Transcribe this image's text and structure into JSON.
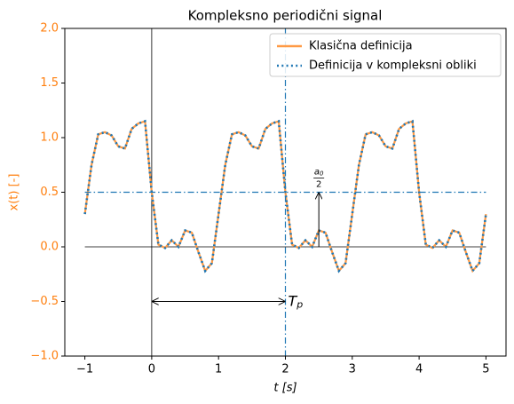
{
  "chart_data": {
    "type": "line",
    "title": "Kompleksno periodični signal",
    "x_label": "t [s]",
    "y_label": "x(t) [-]",
    "y_label_color": "#ff7f0e",
    "x": [
      -1.0,
      -0.9,
      -0.8,
      -0.7,
      -0.6,
      -0.5,
      -0.4,
      -0.3,
      -0.2,
      -0.1,
      0.0,
      0.1,
      0.2,
      0.3,
      0.4,
      0.5,
      0.6,
      0.7,
      0.8,
      0.9,
      1.0,
      1.1,
      1.2,
      1.3,
      1.4,
      1.5,
      1.6,
      1.7,
      1.8,
      1.9,
      2.0,
      2.1,
      2.2,
      2.3,
      2.4,
      2.5,
      2.6,
      2.7,
      2.8,
      2.9,
      3.0,
      3.1,
      3.2,
      3.3,
      3.4,
      3.5,
      3.6,
      3.7,
      3.8,
      3.9,
      4.0,
      4.1,
      4.2,
      4.3,
      4.4,
      4.5,
      4.6,
      4.7,
      4.8,
      4.9,
      5.0
    ],
    "series": [
      {
        "name": "Klasična definicija",
        "color": "#ff9a45",
        "style": "solid",
        "values": [
          0.3,
          0.75,
          1.03,
          1.05,
          1.02,
          0.92,
          0.9,
          1.08,
          1.13,
          1.15,
          0.5,
          0.02,
          -0.01,
          0.06,
          0.0,
          0.15,
          0.13,
          -0.05,
          -0.22,
          -0.15,
          0.3,
          0.75,
          1.03,
          1.05,
          1.02,
          0.92,
          0.9,
          1.08,
          1.13,
          1.15,
          0.5,
          0.02,
          -0.01,
          0.06,
          0.0,
          0.15,
          0.13,
          -0.05,
          -0.22,
          -0.15,
          0.3,
          0.75,
          1.03,
          1.05,
          1.02,
          0.92,
          0.9,
          1.08,
          1.13,
          1.15,
          0.5,
          0.02,
          -0.01,
          0.06,
          0.0,
          0.15,
          0.13,
          -0.05,
          -0.22,
          -0.15,
          0.3
        ]
      },
      {
        "name": "Definicija v kompleksni obliki",
        "color": "#1f77b4",
        "style": "dotted",
        "values": [
          0.3,
          0.75,
          1.03,
          1.05,
          1.02,
          0.92,
          0.9,
          1.08,
          1.13,
          1.15,
          0.5,
          0.02,
          -0.01,
          0.06,
          0.0,
          0.15,
          0.13,
          -0.05,
          -0.22,
          -0.15,
          0.3,
          0.75,
          1.03,
          1.05,
          1.02,
          0.92,
          0.9,
          1.08,
          1.13,
          1.15,
          0.5,
          0.02,
          -0.01,
          0.06,
          0.0,
          0.15,
          0.13,
          -0.05,
          -0.22,
          -0.15,
          0.3,
          0.75,
          1.03,
          1.05,
          1.02,
          0.92,
          0.9,
          1.08,
          1.13,
          1.15,
          0.5,
          0.02,
          -0.01,
          0.06,
          0.0,
          0.15,
          0.13,
          -0.05,
          -0.22,
          -0.15,
          0.3
        ]
      }
    ],
    "xlim": [
      -1.3,
      5.3
    ],
    "ylim": [
      -1.0,
      2.0
    ],
    "xticks": [
      {
        "value": -1,
        "label": "−1"
      },
      0,
      1,
      2,
      3,
      4,
      5
    ],
    "yticks": [
      {
        "value": -1.0,
        "label": "−1.0"
      },
      {
        "value": -0.5,
        "label": "−0.5"
      },
      {
        "value": 0.0,
        "label": "0.0"
      },
      {
        "value": 0.5,
        "label": "0.5"
      },
      {
        "value": 1.0,
        "label": "1.0"
      },
      {
        "value": 1.5,
        "label": "1.5"
      },
      {
        "value": 2.0,
        "label": "2.0"
      }
    ],
    "ytick_color": "#ff7f0e",
    "legend": "upper right",
    "annotations": {
      "zero_line": {
        "y": 0,
        "x": [
          -1,
          5
        ]
      },
      "y_axis_line": {
        "x": 0
      },
      "mean_line": {
        "y": 0.5,
        "x": [
          -1,
          5
        ],
        "color": "#1f77b4"
      },
      "period_line": {
        "x": 2,
        "color": "#1f77b4"
      },
      "period_arrow": {
        "x": [
          0,
          2
        ],
        "y": -0.5,
        "label": "T",
        "label_sub": "p"
      },
      "mean_arrow": {
        "x": 2.5,
        "y": [
          0,
          0.5
        ],
        "numerator": "a",
        "numerator_sub": "0",
        "denominator": "2"
      }
    }
  }
}
